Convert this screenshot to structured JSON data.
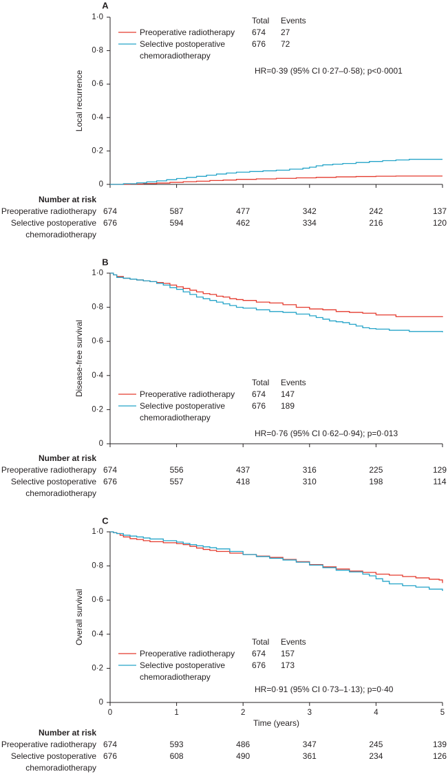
{
  "chart_data": [
    {
      "type": "line",
      "panel": "A",
      "ylabel": "Local recurrence",
      "xlim": [
        0,
        5
      ],
      "ylim": [
        0,
        1
      ],
      "xticks": [
        0,
        1,
        2,
        3,
        4,
        5
      ],
      "yticks": [
        0,
        0.2,
        0.4,
        0.6,
        0.8,
        1.0
      ],
      "ytick_labels": [
        "0",
        "0·2",
        "0·4",
        "0·6",
        "0·8",
        "1·0"
      ],
      "legend": {
        "total_header": "Total",
        "events_header": "Events"
      },
      "series": [
        {
          "label_lines": [
            "Preoperative radiotherapy"
          ],
          "color": "#e4392c",
          "total": 674,
          "events": 27,
          "x": [
            0,
            0.3,
            0.5,
            0.7,
            0.9,
            1.1,
            1.3,
            1.5,
            1.7,
            1.9,
            2.2,
            2.5,
            2.8,
            3.1,
            3.4,
            3.7,
            4.0,
            4.3,
            5.0
          ],
          "y": [
            0,
            0.002,
            0.005,
            0.008,
            0.012,
            0.016,
            0.019,
            0.023,
            0.026,
            0.03,
            0.033,
            0.036,
            0.039,
            0.042,
            0.045,
            0.047,
            0.049,
            0.05,
            0.05
          ]
        },
        {
          "label_lines": [
            "Selective postoperative",
            "chemoradiotherapy"
          ],
          "color": "#23a3c8",
          "total": 676,
          "events": 72,
          "x": [
            0,
            0.2,
            0.4,
            0.55,
            0.7,
            0.85,
            1.0,
            1.15,
            1.3,
            1.45,
            1.6,
            1.75,
            1.9,
            2.1,
            2.3,
            2.5,
            2.7,
            2.9,
            3.0,
            3.1,
            3.2,
            3.35,
            3.5,
            3.7,
            3.9,
            4.1,
            4.3,
            4.5,
            5.0
          ],
          "y": [
            0,
            0.004,
            0.009,
            0.015,
            0.021,
            0.028,
            0.035,
            0.042,
            0.048,
            0.055,
            0.062,
            0.068,
            0.073,
            0.077,
            0.081,
            0.085,
            0.091,
            0.097,
            0.103,
            0.111,
            0.117,
            0.121,
            0.125,
            0.131,
            0.137,
            0.142,
            0.146,
            0.15,
            0.15
          ]
        }
      ],
      "annotation": "HR=0·39 (95% CI 0·27–0·58); p<0·0001",
      "risk_table": {
        "title": "Number at risk",
        "times": [
          0,
          1,
          2,
          3,
          4,
          5
        ],
        "rows": [
          {
            "label_lines": [
              "Preoperative radiotherapy"
            ],
            "values": [
              674,
              587,
              477,
              342,
              242,
              137
            ]
          },
          {
            "label_lines": [
              "Selective postoperative",
              "chemoradiotherapy"
            ],
            "values": [
              676,
              594,
              462,
              334,
              216,
              120
            ]
          }
        ]
      }
    },
    {
      "type": "line",
      "panel": "B",
      "ylabel": "Disease-free survival",
      "xlim": [
        0,
        5
      ],
      "ylim": [
        0,
        1
      ],
      "xticks": [
        0,
        1,
        2,
        3,
        4,
        5
      ],
      "yticks": [
        0,
        0.2,
        0.4,
        0.6,
        0.8,
        1.0
      ],
      "ytick_labels": [
        "0",
        "0·2",
        "0·4",
        "0·6",
        "0·8",
        "1·0"
      ],
      "legend": {
        "total_header": "Total",
        "events_header": "Events"
      },
      "series": [
        {
          "label_lines": [
            "Preoperative radiotherapy"
          ],
          "color": "#e4392c",
          "total": 674,
          "events": 147,
          "x": [
            0,
            0.05,
            0.1,
            0.2,
            0.3,
            0.4,
            0.5,
            0.6,
            0.7,
            0.8,
            0.9,
            1.0,
            1.1,
            1.2,
            1.3,
            1.4,
            1.5,
            1.6,
            1.7,
            1.8,
            1.9,
            2.0,
            2.2,
            2.4,
            2.6,
            2.8,
            3.0,
            3.2,
            3.4,
            3.6,
            3.8,
            4.0,
            4.3,
            5.0
          ],
          "y": [
            1,
            0.99,
            0.98,
            0.97,
            0.965,
            0.96,
            0.955,
            0.95,
            0.945,
            0.94,
            0.93,
            0.92,
            0.91,
            0.9,
            0.89,
            0.88,
            0.875,
            0.865,
            0.86,
            0.85,
            0.845,
            0.84,
            0.83,
            0.825,
            0.815,
            0.8,
            0.79,
            0.785,
            0.775,
            0.77,
            0.765,
            0.755,
            0.745,
            0.742
          ]
        },
        {
          "label_lines": [
            "Selective postoperative",
            "chemoradiotherapy"
          ],
          "color": "#23a3c8",
          "total": 676,
          "events": 189,
          "x": [
            0,
            0.05,
            0.1,
            0.2,
            0.3,
            0.4,
            0.5,
            0.6,
            0.7,
            0.8,
            0.9,
            1.0,
            1.1,
            1.2,
            1.3,
            1.4,
            1.5,
            1.6,
            1.7,
            1.8,
            1.9,
            2.0,
            2.2,
            2.4,
            2.6,
            2.8,
            3.0,
            3.1,
            3.2,
            3.3,
            3.4,
            3.5,
            3.6,
            3.7,
            3.8,
            3.9,
            4.0,
            4.2,
            4.5,
            5.0
          ],
          "y": [
            1,
            0.99,
            0.975,
            0.97,
            0.965,
            0.96,
            0.955,
            0.95,
            0.94,
            0.93,
            0.915,
            0.905,
            0.89,
            0.875,
            0.86,
            0.85,
            0.84,
            0.83,
            0.82,
            0.81,
            0.8,
            0.795,
            0.785,
            0.775,
            0.77,
            0.76,
            0.75,
            0.74,
            0.73,
            0.72,
            0.715,
            0.71,
            0.7,
            0.69,
            0.68,
            0.675,
            0.672,
            0.665,
            0.658,
            0.653
          ]
        }
      ],
      "annotation": "HR=0·76 (95% CI 0·62–0·94); p=0·013",
      "risk_table": {
        "title": "Number at risk",
        "times": [
          0,
          1,
          2,
          3,
          4,
          5
        ],
        "rows": [
          {
            "label_lines": [
              "Preoperative radiotherapy"
            ],
            "values": [
              674,
              556,
              437,
              316,
              225,
              129
            ]
          },
          {
            "label_lines": [
              "Selective postoperative",
              "chemoradiotherapy"
            ],
            "values": [
              676,
              557,
              418,
              310,
              198,
              114
            ]
          }
        ]
      }
    },
    {
      "type": "line",
      "panel": "C",
      "ylabel": "Overall survival",
      "xlabel": "Time (years)",
      "xlim": [
        0,
        5
      ],
      "ylim": [
        0,
        1
      ],
      "xticks": [
        0,
        1,
        2,
        3,
        4,
        5
      ],
      "xtick_labels": [
        "0",
        "1",
        "2",
        "3",
        "4",
        "5"
      ],
      "yticks": [
        0,
        0.2,
        0.4,
        0.6,
        0.8,
        1.0
      ],
      "ytick_labels": [
        "0",
        "0·2",
        "0·4",
        "0·6",
        "0·8",
        "1·0"
      ],
      "legend": {
        "total_header": "Total",
        "events_header": "Events"
      },
      "series": [
        {
          "label_lines": [
            "Preoperative radiotherapy"
          ],
          "color": "#e4392c",
          "total": 674,
          "events": 157,
          "x": [
            0,
            0.05,
            0.1,
            0.15,
            0.2,
            0.3,
            0.4,
            0.5,
            0.6,
            0.8,
            1.0,
            1.1,
            1.2,
            1.3,
            1.4,
            1.5,
            1.6,
            1.8,
            2.0,
            2.2,
            2.4,
            2.6,
            2.8,
            3.0,
            3.2,
            3.4,
            3.6,
            3.8,
            4.0,
            4.2,
            4.4,
            4.6,
            4.8,
            4.95,
            5.0
          ],
          "y": [
            1,
            0.995,
            0.99,
            0.98,
            0.97,
            0.96,
            0.955,
            0.948,
            0.942,
            0.936,
            0.931,
            0.925,
            0.915,
            0.905,
            0.897,
            0.891,
            0.885,
            0.875,
            0.867,
            0.858,
            0.85,
            0.838,
            0.825,
            0.808,
            0.795,
            0.782,
            0.77,
            0.762,
            0.752,
            0.746,
            0.738,
            0.73,
            0.722,
            0.718,
            0.7
          ]
        },
        {
          "label_lines": [
            "Selective postoperative",
            "chemoradiotherapy"
          ],
          "color": "#23a3c8",
          "total": 676,
          "events": 173,
          "x": [
            0,
            0.05,
            0.1,
            0.2,
            0.3,
            0.4,
            0.5,
            0.6,
            0.8,
            1.0,
            1.1,
            1.2,
            1.3,
            1.4,
            1.5,
            1.6,
            1.8,
            2.0,
            2.2,
            2.4,
            2.6,
            2.8,
            3.0,
            3.2,
            3.4,
            3.6,
            3.8,
            3.9,
            4.0,
            4.1,
            4.2,
            4.4,
            4.6,
            4.8,
            5.0
          ],
          "y": [
            1,
            0.995,
            0.99,
            0.98,
            0.975,
            0.97,
            0.964,
            0.958,
            0.948,
            0.94,
            0.932,
            0.925,
            0.918,
            0.912,
            0.907,
            0.9,
            0.885,
            0.867,
            0.855,
            0.845,
            0.835,
            0.822,
            0.805,
            0.79,
            0.775,
            0.765,
            0.752,
            0.742,
            0.725,
            0.71,
            0.695,
            0.684,
            0.676,
            0.664,
            0.653
          ]
        }
      ],
      "annotation": "HR=0·91 (95% CI 0·73–1·13); p=0·40",
      "risk_table": {
        "title": "Number at risk",
        "times": [
          0,
          1,
          2,
          3,
          4,
          5
        ],
        "rows": [
          {
            "label_lines": [
              "Preoperative radiotherapy"
            ],
            "values": [
              674,
              593,
              486,
              347,
              245,
              139
            ]
          },
          {
            "label_lines": [
              "Selective postoperative",
              "chemoradiotherapy"
            ],
            "values": [
              676,
              608,
              490,
              361,
              234,
              126
            ]
          }
        ]
      }
    }
  ]
}
